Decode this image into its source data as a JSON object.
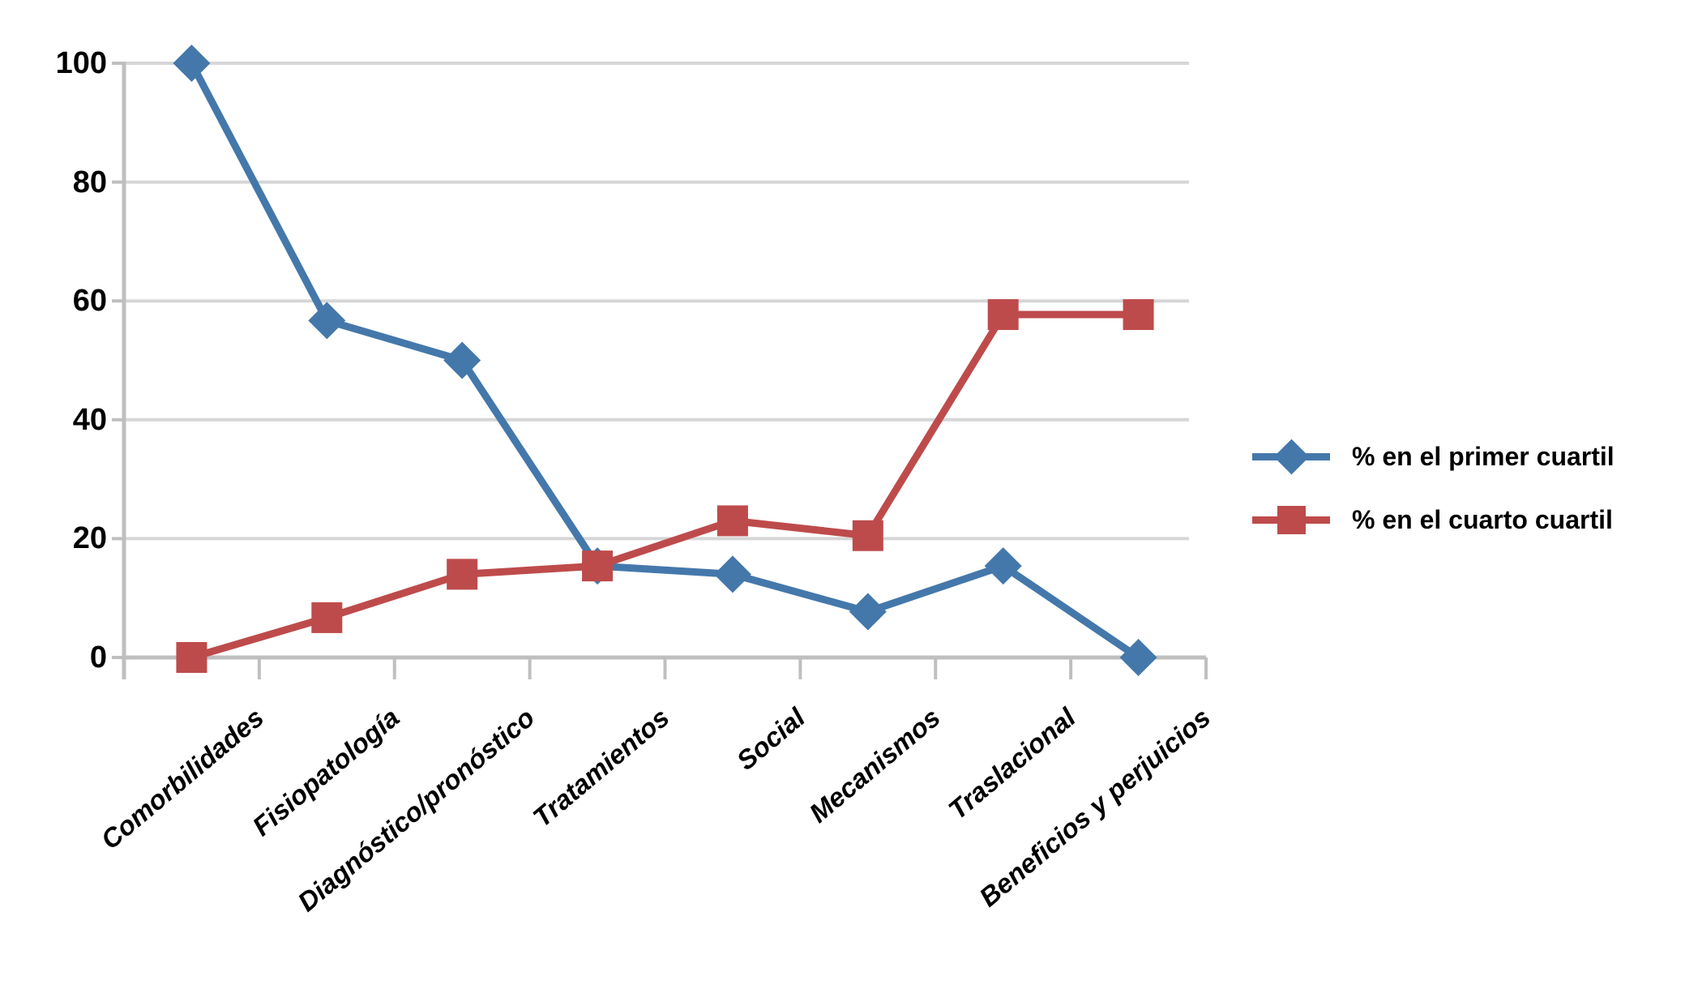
{
  "chart_data": {
    "type": "line",
    "title": "",
    "xlabel": "",
    "ylabel": "",
    "categories": [
      "Comorbilidades",
      "Fisiopatología",
      "Diagnóstico/pronóstico",
      "Tratamientos",
      "Social",
      "Mecanismos",
      "Traslacional",
      "Beneficios y perjuicios"
    ],
    "series": [
      {
        "name": "% en el primer cuartil",
        "marker": "diamond",
        "color": "#4478AB",
        "values": [
          100,
          56.7,
          50,
          15.4,
          14,
          7.7,
          15.4,
          0
        ]
      },
      {
        "name": "% en el cuarto cuartil",
        "marker": "square",
        "color": "#BE4B4B",
        "values": [
          0,
          6.7,
          14,
          15.4,
          23,
          20.5,
          57.7,
          57.7
        ]
      }
    ],
    "y_ticks": [
      0,
      20,
      40,
      60,
      80,
      100
    ],
    "ylim": [
      0,
      100
    ],
    "grid": "horizontal",
    "gridline_color": "#D6D6D6",
    "axis_color": "#BFBFBF",
    "legend_position": "right"
  }
}
